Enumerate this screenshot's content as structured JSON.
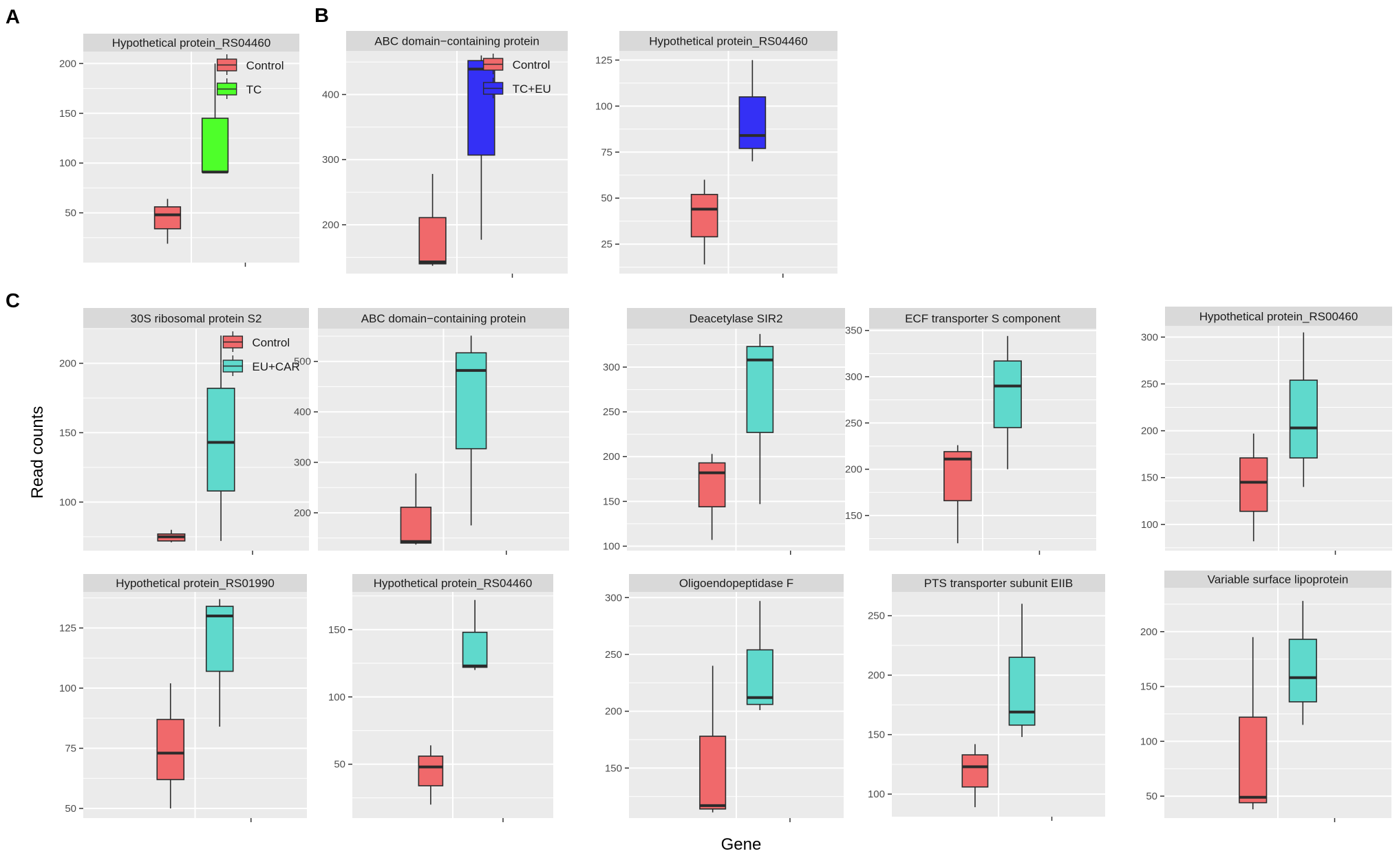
{
  "figure": {
    "panel_labels": [
      "A",
      "B",
      "C"
    ],
    "y_axis_title": "Read counts",
    "x_axis_title": "Gene"
  },
  "colors": {
    "control": "#f0696b",
    "TC": "#4eff2a",
    "TC+EU": "#3430f5",
    "EU+CAR": "#5fd9cc",
    "panel_bg": "#ebebeb",
    "strip_bg": "#d9d9d9",
    "grid": "#ffffff",
    "box_line": "#2b2b2b"
  },
  "chart_data": [
    {
      "type": "boxplot",
      "panel": "A",
      "title": "Hypothetical protein_RS04460",
      "ylim": [
        0,
        212
      ],
      "yticks": [
        50,
        100,
        150,
        200
      ],
      "legend": [
        "Control",
        "TC"
      ],
      "boxes": [
        {
          "group": "Control",
          "min": 19,
          "q1": 34,
          "median": 48,
          "q3": 56,
          "max": 64
        },
        {
          "group": "TC",
          "min": 91,
          "q1": 91,
          "median": 91,
          "q3": 145,
          "max": 200
        }
      ]
    },
    {
      "type": "boxplot",
      "panel": "B",
      "title": "ABC domain−containing protein",
      "ylim": [
        125,
        467
      ],
      "yticks": [
        200,
        300,
        400
      ],
      "legend": [
        "Control",
        "TC+EU"
      ],
      "boxes": [
        {
          "group": "Control",
          "min": 137,
          "q1": 140,
          "median": 143,
          "q3": 211,
          "max": 278
        },
        {
          "group": "TC+EU",
          "min": 177,
          "q1": 307,
          "median": 439,
          "q3": 452,
          "max": 460
        }
      ]
    },
    {
      "type": "boxplot",
      "panel": "B",
      "title": "Hypothetical protein_RS04460",
      "ylim": [
        9,
        130
      ],
      "yticks": [
        25,
        50,
        75,
        100,
        125
      ],
      "legend": [],
      "boxes": [
        {
          "group": "Control",
          "min": 14,
          "q1": 29,
          "median": 44,
          "q3": 52,
          "max": 60
        },
        {
          "group": "TC+EU",
          "min": 70,
          "q1": 77,
          "median": 84,
          "q3": 105,
          "max": 125
        }
      ]
    },
    {
      "type": "boxplot",
      "panel": "C",
      "title": "30S ribosomal protein S2",
      "ylim": [
        65,
        225
      ],
      "yticks": [
        100,
        150,
        200
      ],
      "legend": [
        "Control",
        "EU+CAR"
      ],
      "boxes": [
        {
          "group": "Control",
          "min": 71,
          "q1": 72,
          "median": 75,
          "q3": 77,
          "max": 80
        },
        {
          "group": "EU+CAR",
          "min": 72,
          "q1": 108,
          "median": 143,
          "q3": 182,
          "max": 220
        }
      ]
    },
    {
      "type": "boxplot",
      "panel": "C",
      "title": "ABC domain−containing protein",
      "ylim": [
        125,
        565
      ],
      "yticks": [
        200,
        300,
        400,
        500
      ],
      "legend": [],
      "boxes": [
        {
          "group": "Control",
          "min": 137,
          "q1": 140,
          "median": 143,
          "q3": 211,
          "max": 278
        },
        {
          "group": "EU+CAR",
          "min": 175,
          "q1": 327,
          "median": 482,
          "q3": 517,
          "max": 551
        }
      ]
    },
    {
      "type": "boxplot",
      "panel": "C",
      "title": "Deacetylase SIR2",
      "ylim": [
        95,
        343
      ],
      "yticks": [
        100,
        150,
        200,
        250,
        300
      ],
      "legend": [],
      "boxes": [
        {
          "group": "Control",
          "min": 107,
          "q1": 144,
          "median": 182,
          "q3": 193,
          "max": 203
        },
        {
          "group": "EU+CAR",
          "min": 147,
          "q1": 227,
          "median": 308,
          "q3": 323,
          "max": 337
        }
      ]
    },
    {
      "type": "boxplot",
      "panel": "C",
      "title": "ECF transporter S component",
      "ylim": [
        112,
        352
      ],
      "yticks": [
        150,
        200,
        250,
        300,
        350
      ],
      "legend": [],
      "boxes": [
        {
          "group": "Control",
          "min": 120,
          "q1": 166,
          "median": 211,
          "q3": 219,
          "max": 226
        },
        {
          "group": "EU+CAR",
          "min": 200,
          "q1": 245,
          "median": 290,
          "q3": 317,
          "max": 344
        }
      ]
    },
    {
      "type": "boxplot",
      "panel": "C",
      "title": "Hypothetical protein_RS00460",
      "ylim": [
        72,
        312
      ],
      "yticks": [
        100,
        150,
        200,
        250,
        300
      ],
      "legend": [],
      "boxes": [
        {
          "group": "Control",
          "min": 82,
          "q1": 114,
          "median": 145,
          "q3": 171,
          "max": 197
        },
        {
          "group": "EU+CAR",
          "min": 140,
          "q1": 171,
          "median": 203,
          "q3": 254,
          "max": 305
        }
      ]
    },
    {
      "type": "boxplot",
      "panel": "C",
      "title": "Hypothetical protein_RS01990",
      "ylim": [
        46,
        140
      ],
      "yticks": [
        50,
        75,
        100,
        125
      ],
      "legend": [],
      "boxes": [
        {
          "group": "Control",
          "min": 50,
          "q1": 62,
          "median": 73,
          "q3": 87,
          "max": 102
        },
        {
          "group": "EU+CAR",
          "min": 84,
          "q1": 107,
          "median": 130,
          "q3": 134,
          "max": 137
        }
      ]
    },
    {
      "type": "boxplot",
      "panel": "C",
      "title": "Hypothetical protein_RS04460",
      "ylim": [
        10,
        178
      ],
      "yticks": [
        50,
        100,
        150
      ],
      "legend": [],
      "boxes": [
        {
          "group": "Control",
          "min": 20,
          "q1": 34,
          "median": 48,
          "q3": 56,
          "max": 64
        },
        {
          "group": "EU+CAR",
          "min": 120,
          "q1": 122,
          "median": 123,
          "q3": 148,
          "max": 172
        }
      ]
    },
    {
      "type": "boxplot",
      "panel": "C",
      "title": "Oligoendopeptidase F",
      "ylim": [
        106,
        305
      ],
      "yticks": [
        150,
        200,
        250,
        300
      ],
      "legend": [],
      "boxes": [
        {
          "group": "Control",
          "min": 111,
          "q1": 114,
          "median": 117,
          "q3": 178,
          "max": 240
        },
        {
          "group": "EU+CAR",
          "min": 201,
          "q1": 206,
          "median": 212,
          "q3": 254,
          "max": 297
        }
      ]
    },
    {
      "type": "boxplot",
      "panel": "C",
      "title": "PTS transporter subunit EIIB",
      "ylim": [
        81,
        270
      ],
      "yticks": [
        100,
        150,
        200,
        250
      ],
      "legend": [],
      "boxes": [
        {
          "group": "Control",
          "min": 89,
          "q1": 106,
          "median": 123,
          "q3": 133,
          "max": 142
        },
        {
          "group": "EU+CAR",
          "min": 148,
          "q1": 158,
          "median": 169,
          "q3": 215,
          "max": 260
        }
      ]
    },
    {
      "type": "boxplot",
      "panel": "C",
      "title": "Variable surface lipoprotein",
      "ylim": [
        30,
        240
      ],
      "yticks": [
        50,
        100,
        150,
        200
      ],
      "legend": [],
      "boxes": [
        {
          "group": "Control",
          "min": 38,
          "q1": 44,
          "median": 49,
          "q3": 122,
          "max": 195
        },
        {
          "group": "EU+CAR",
          "min": 115,
          "q1": 136,
          "median": 158,
          "q3": 193,
          "max": 228
        }
      ]
    }
  ]
}
